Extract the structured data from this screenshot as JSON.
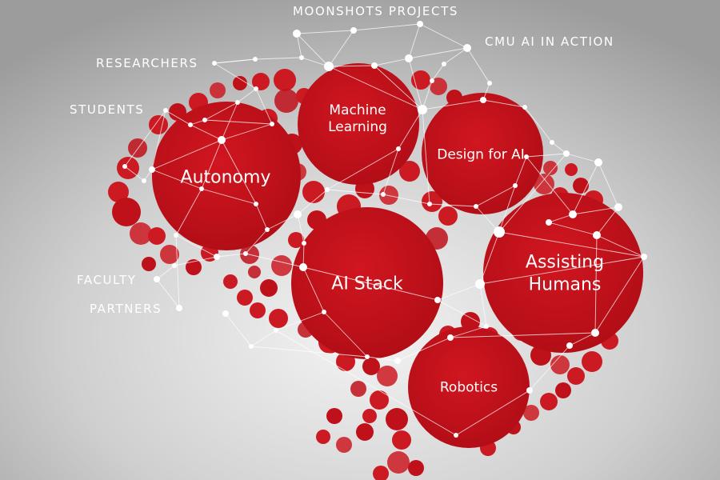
{
  "outer_labels": {
    "moonshots": "MOONSHOTS PROJECTS",
    "cmu_ai": "CMU AI IN ACTION",
    "researchers": "RESEARCHERS",
    "students": "STUDENTS",
    "faculty": "FACULTY",
    "partners": "PARTNERS"
  },
  "areas": {
    "machine_learning": [
      "Machine",
      "Learning"
    ],
    "design_for_ai": "Design for AI",
    "autonomy": "Autonomy",
    "ai_stack": "AI Stack",
    "assisting_humans": [
      "Assisting",
      "Humans"
    ],
    "robotics": "Robotics"
  },
  "colors": {
    "brand_red": "#c4101b",
    "small_red": "#cc1a22",
    "background": "#d4d4d4",
    "node": "#ffffff"
  }
}
